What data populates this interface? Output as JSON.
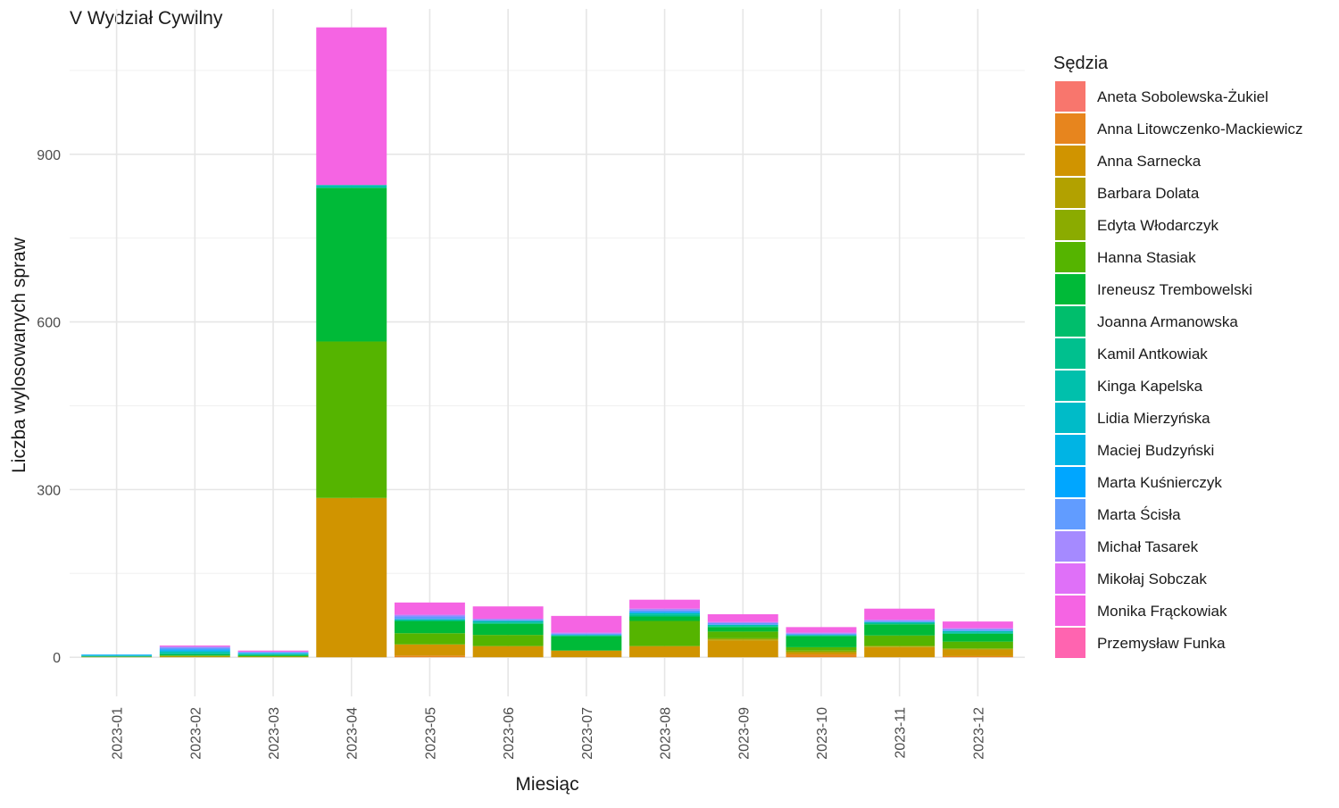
{
  "chart_data": {
    "type": "bar",
    "stacked": true,
    "title": "V Wydział Cywilny",
    "xlabel": "Miesiąc",
    "ylabel": "Liczba wylosowanych spraw",
    "legend_title": "Sędzia",
    "legend_position": "right",
    "grid": true,
    "ylim": [
      -70,
      1160
    ],
    "y_ticks": [
      0,
      300,
      600,
      900
    ],
    "categories": [
      "2023-01",
      "2023-02",
      "2023-03",
      "2023-04",
      "2023-05",
      "2023-06",
      "2023-07",
      "2023-08",
      "2023-09",
      "2023-10",
      "2023-11",
      "2023-12"
    ],
    "series": [
      {
        "name": "Aneta Sobolewska-Żukiel",
        "color": "#F8766D",
        "values": [
          0,
          0,
          0,
          0,
          0,
          0,
          0,
          0,
          0,
          0,
          0,
          0
        ]
      },
      {
        "name": "Anna Litowczenko-Mackiewicz",
        "color": "#E7851E",
        "values": [
          0,
          0,
          0,
          0,
          3,
          0,
          0,
          0,
          0,
          5,
          0,
          2
        ]
      },
      {
        "name": "Anna Sarnecka",
        "color": "#D09400",
        "values": [
          0,
          0,
          0,
          285,
          20,
          20,
          12,
          20,
          30,
          4,
          18,
          12
        ]
      },
      {
        "name": "Barbara Dolata",
        "color": "#B2A100",
        "values": [
          1,
          2,
          1,
          0,
          0,
          0,
          0,
          0,
          2,
          0,
          1,
          0
        ]
      },
      {
        "name": "Edyta Włodarczyk",
        "color": "#8BAB00",
        "values": [
          0,
          1,
          1,
          0,
          0,
          0,
          0,
          0,
          2,
          3,
          2,
          2
        ]
      },
      {
        "name": "Hanna Stasiak",
        "color": "#55B400",
        "values": [
          0,
          0,
          0,
          280,
          20,
          20,
          0,
          45,
          12,
          6,
          18,
          12
        ]
      },
      {
        "name": "Ireneusz Trembowelski",
        "color": "#00BA38",
        "values": [
          0,
          2,
          2,
          275,
          22,
          20,
          26,
          8,
          8,
          20,
          20,
          14
        ]
      },
      {
        "name": "Joanna Armanowska",
        "color": "#00BE6C",
        "values": [
          0,
          0,
          0,
          0,
          0,
          0,
          0,
          0,
          0,
          0,
          0,
          0
        ]
      },
      {
        "name": "Kamil Antkowiak",
        "color": "#00C08E",
        "values": [
          1,
          2,
          1,
          0,
          0,
          2,
          0,
          3,
          2,
          0,
          2,
          2
        ]
      },
      {
        "name": "Kinga Kapelska",
        "color": "#00C0AC",
        "values": [
          1,
          3,
          1,
          5,
          3,
          3,
          2,
          3,
          2,
          2,
          2,
          3
        ]
      },
      {
        "name": "Lidia Mierzyńska",
        "color": "#00BBC8",
        "values": [
          0,
          0,
          0,
          0,
          0,
          0,
          0,
          0,
          0,
          0,
          0,
          0
        ]
      },
      {
        "name": "Maciej Budzyński",
        "color": "#00B4E4",
        "values": [
          1,
          2,
          1,
          0,
          0,
          0,
          0,
          0,
          0,
          0,
          0,
          0
        ]
      },
      {
        "name": "Marta Kuśnierczyk",
        "color": "#00A6FF",
        "values": [
          1,
          2,
          1,
          0,
          0,
          0,
          0,
          2,
          0,
          0,
          0,
          0
        ]
      },
      {
        "name": "Marta Ścisła",
        "color": "#619CFF",
        "values": [
          0,
          3,
          1,
          0,
          5,
          2,
          2,
          3,
          3,
          2,
          2,
          3
        ]
      },
      {
        "name": "Michał Tasarek",
        "color": "#A58AFF",
        "values": [
          0,
          2,
          1,
          0,
          3,
          2,
          2,
          3,
          2,
          2,
          2,
          2
        ]
      },
      {
        "name": "Mikołaj Sobczak",
        "color": "#DF70F8",
        "values": [
          0,
          0,
          0,
          0,
          0,
          0,
          0,
          0,
          0,
          0,
          0,
          0
        ]
      },
      {
        "name": "Monika Frąckowiak",
        "color": "#F564E3",
        "values": [
          0,
          2,
          2,
          282,
          22,
          22,
          30,
          16,
          14,
          10,
          20,
          12
        ]
      },
      {
        "name": "Przemysław Funka",
        "color": "#FF64B0",
        "values": [
          0,
          0,
          0,
          0,
          0,
          0,
          0,
          0,
          0,
          0,
          0,
          0
        ]
      }
    ]
  }
}
